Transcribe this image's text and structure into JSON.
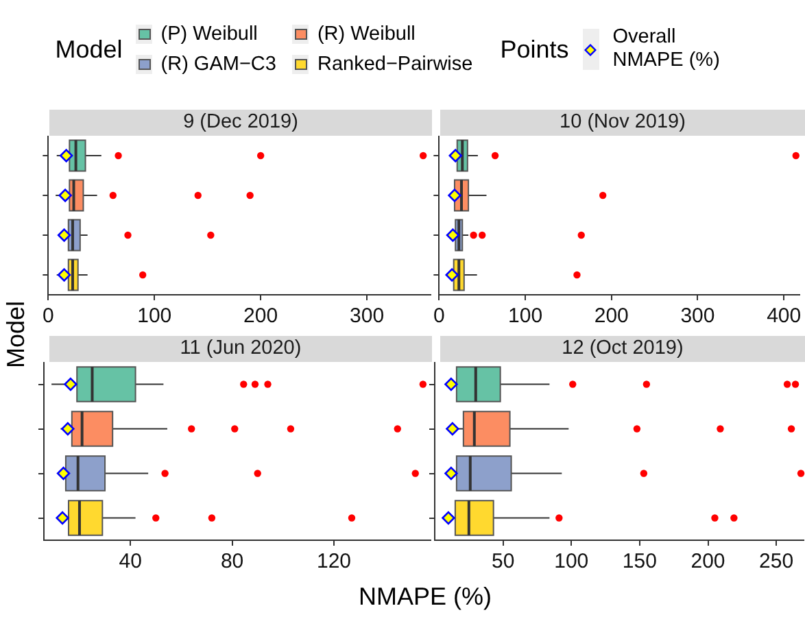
{
  "chart_data": [
    {
      "type": "box",
      "title": "9 (Dec 2019)",
      "orientation": "horizontal",
      "ylabel": "Model",
      "legend": "top",
      "legend_title": "Model",
      "annotations": [
        "Points",
        "Overall NMAPE (%)"
      ],
      "tick_labels": "x",
      "categories": [
        null,
        null,
        null,
        null
      ],
      "xlim": [
        0,
        360
      ],
      "xticks": [
        0,
        100,
        200,
        300
      ],
      "series": [
        {
          "name": "(P) Weibull",
          "color": "#66c2a5",
          "boxes": [
            {
              "low": 8,
              "q1": 20,
              "median": 26,
              "q3": 35,
              "high": 50,
              "mean": 17,
              "outliers": [
                66,
                200,
                353
              ]
            },
            null,
            null,
            null
          ]
        },
        {
          "name": "(R) Weibull",
          "color": "#fc8d62",
          "boxes": [
            null,
            {
              "low": 7,
              "q1": 20,
              "median": 24,
              "q3": 33,
              "high": 46,
              "mean": 16,
              "outliers": [
                61,
                141,
                190
              ]
            },
            null,
            null
          ]
        },
        {
          "name": "(R) GAM−C3",
          "color": "#8da0cb",
          "boxes": [
            null,
            null,
            {
              "low": 13,
              "q1": 19,
              "median": 23,
              "q3": 30,
              "high": 37,
              "mean": 15,
              "outliers": [
                75,
                153
              ]
            },
            null
          ]
        },
        {
          "name": "Ranked−Pairwise",
          "color": "#ffd92f",
          "boxes": [
            null,
            null,
            null,
            {
              "low": 8,
              "q1": 19,
              "median": 23,
              "q3": 28,
              "high": 37,
              "mean": 15,
              "outliers": [
                89
              ]
            }
          ]
        }
      ]
    },
    {
      "type": "box",
      "title": "10 (Nov 2019)",
      "orientation": "horizontal",
      "tick_labels": "x",
      "categories": [
        null,
        null,
        null,
        null
      ],
      "xlim": [
        0,
        418
      ],
      "xticks": [
        0,
        100,
        200,
        300,
        400
      ],
      "series": [
        {
          "color": "#66c2a5",
          "boxes": [
            {
              "low": 14,
              "q1": 21,
              "median": 27,
              "q3": 33,
              "high": 45,
              "mean": 19,
              "outliers": [
                65,
                414
              ]
            },
            null,
            null,
            null
          ]
        },
        {
          "color": "#fc8d62",
          "boxes": [
            null,
            {
              "low": 11,
              "q1": 18,
              "median": 26,
              "q3": 34,
              "high": 55,
              "mean": 18,
              "outliers": [
                190
              ]
            },
            null,
            null
          ]
        },
        {
          "color": "#8da0cb",
          "boxes": [
            null,
            null,
            {
              "low": 11,
              "q1": 19,
              "median": 23,
              "q3": 27,
              "high": 34,
              "mean": 16,
              "outliers": [
                40,
                50,
                165
              ]
            },
            null
          ]
        },
        {
          "color": "#ffd92f",
          "boxes": [
            null,
            null,
            null,
            {
              "low": 11,
              "q1": 17,
              "median": 23,
              "q3": 29,
              "high": 44,
              "mean": 15,
              "outliers": [
                160
              ]
            }
          ]
        }
      ]
    },
    {
      "type": "box",
      "title": "11 (Jun 2020)",
      "orientation": "horizontal",
      "xlabel": "NMAPE (%)",
      "tick_labels": "x",
      "categories": [
        null,
        null,
        null,
        null
      ],
      "xlim": [
        6,
        158
      ],
      "xticks": [
        40,
        80,
        120
      ],
      "series": [
        {
          "color": "#66c2a5",
          "boxes": [
            {
              "low": 9,
              "q1": 19,
              "median": 25,
              "q3": 42,
              "high": 53,
              "mean": 16.5,
              "outliers": [
                84.5,
                89,
                94,
                155
              ]
            },
            null,
            null,
            null
          ]
        },
        {
          "color": "#fc8d62",
          "boxes": [
            null,
            {
              "low": 12.6,
              "q1": 17,
              "median": 21,
              "q3": 33,
              "high": 54.5,
              "mean": 15.4,
              "outliers": [
                64,
                81,
                103,
                145
              ]
            },
            null,
            null
          ]
        },
        {
          "color": "#8da0cb",
          "boxes": [
            null,
            null,
            {
              "low": 11.5,
              "q1": 14.6,
              "median": 19.4,
              "q3": 30,
              "high": 47,
              "mean": 13.7,
              "outliers": [
                53.6,
                90,
                152
              ]
            },
            null
          ]
        },
        {
          "color": "#ffd92f",
          "boxes": [
            null,
            null,
            null,
            {
              "low": 11.5,
              "q1": 15.7,
              "median": 20,
              "q3": 29,
              "high": 42,
              "mean": 13.3,
              "outliers": [
                50,
                72,
                127
              ]
            }
          ]
        }
      ]
    },
    {
      "type": "box",
      "title": "12 (Oct 2019)",
      "orientation": "horizontal",
      "tick_labels": "x",
      "categories": [
        null,
        null,
        null,
        null
      ],
      "xlim": [
        0,
        270
      ],
      "xticks": [
        50,
        100,
        150,
        200,
        250
      ],
      "series": [
        {
          "color": "#66c2a5",
          "boxes": [
            {
              "low": 8,
              "q1": 16,
              "median": 30,
              "q3": 48,
              "high": 84,
              "mean": 12,
              "outliers": [
                101,
                155,
                258,
                264
              ]
            },
            null,
            null,
            null
          ]
        },
        {
          "color": "#fc8d62",
          "boxes": [
            null,
            {
              "low": 14,
              "q1": 21,
              "median": 29,
              "q3": 55,
              "high": 98,
              "mean": 13,
              "outliers": [
                148,
                209,
                261
              ]
            },
            null,
            null
          ]
        },
        {
          "color": "#8da0cb",
          "boxes": [
            null,
            null,
            {
              "low": 10,
              "q1": 16,
              "median": 26,
              "q3": 56,
              "high": 93,
              "mean": 12,
              "outliers": [
                153,
                268
              ]
            },
            null
          ]
        },
        {
          "color": "#ffd92f",
          "boxes": [
            null,
            null,
            null,
            {
              "low": 8,
              "q1": 15,
              "median": 25,
              "q3": 43,
              "high": 84,
              "mean": 10,
              "outliers": [
                91,
                205,
                219
              ]
            }
          ]
        }
      ]
    }
  ]
}
